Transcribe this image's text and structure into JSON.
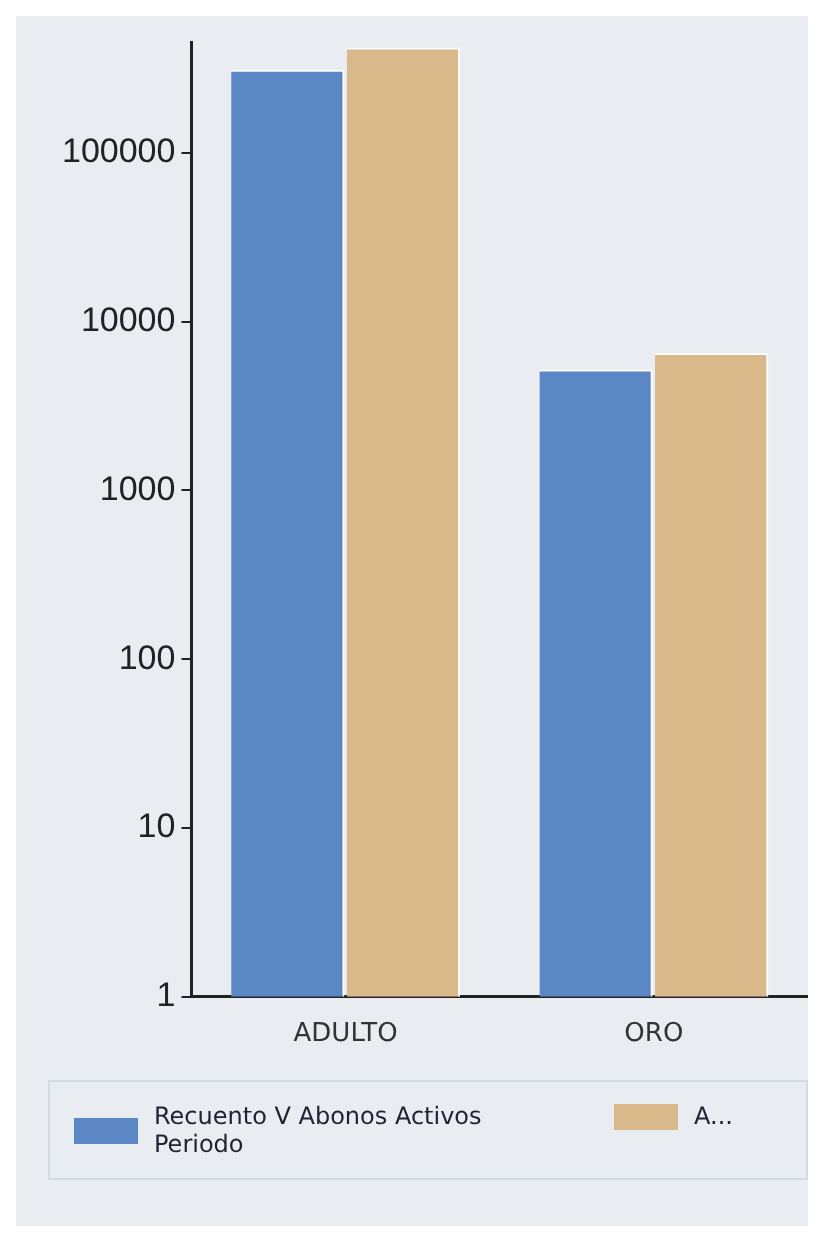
{
  "chart_data": {
    "type": "bar",
    "categories": [
      "ADULTO",
      "ORO"
    ],
    "series": [
      {
        "name": "Recuento V Abonos Activos Periodo",
        "color": "#5b87c5",
        "values": [
          310000,
          5200
        ]
      },
      {
        "name": "A...",
        "color": "#d9b88a",
        "values": [
          420000,
          6500
        ]
      }
    ],
    "log": true,
    "ylim": [
      1,
      450000
    ],
    "yticks": [
      1,
      10,
      100,
      1000,
      10000,
      100000
    ],
    "grid": false,
    "legend": "bottom"
  }
}
